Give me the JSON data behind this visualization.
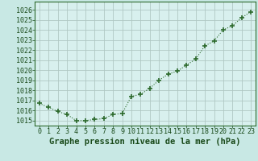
{
  "x": [
    0,
    1,
    2,
    3,
    4,
    5,
    6,
    7,
    8,
    9,
    10,
    11,
    12,
    13,
    14,
    15,
    16,
    17,
    18,
    19,
    20,
    21,
    22,
    23
  ],
  "y": [
    1016.7,
    1016.3,
    1015.9,
    1015.6,
    1015.0,
    1015.0,
    1015.1,
    1015.2,
    1015.6,
    1015.7,
    1017.4,
    1017.6,
    1018.2,
    1019.0,
    1019.6,
    1019.9,
    1020.5,
    1021.1,
    1022.4,
    1022.9,
    1024.0,
    1024.4,
    1025.2,
    1025.8
  ],
  "line_color": "#2d6a2d",
  "marker_color": "#2d6a2d",
  "bg_plot": "#d8f0ee",
  "bg_fig": "#c8e8e4",
  "grid_color": "#b0c8c4",
  "ylabel_ticks": [
    1015,
    1016,
    1017,
    1018,
    1019,
    1020,
    1021,
    1022,
    1023,
    1024,
    1025,
    1026
  ],
  "xlabel": "Graphe pression niveau de la mer (hPa)",
  "ylim": [
    1014.5,
    1026.8
  ],
  "xlim": [
    -0.5,
    23.5
  ],
  "label_fontsize": 7.5,
  "tick_fontsize": 6.0
}
